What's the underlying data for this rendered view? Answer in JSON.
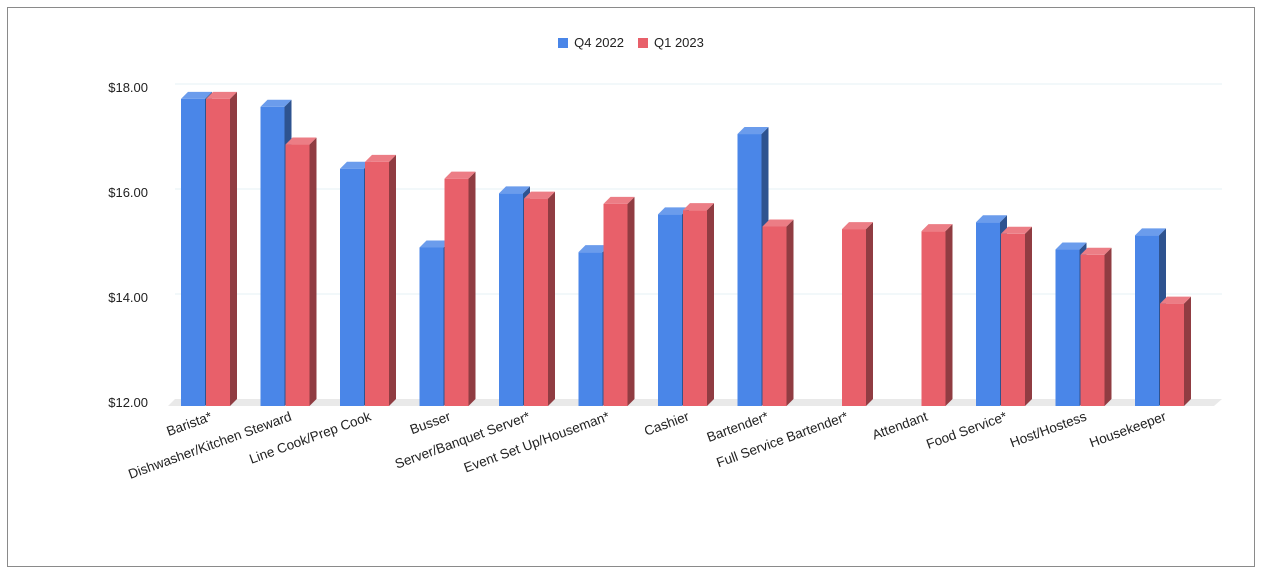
{
  "chart_data": {
    "type": "bar",
    "categories": [
      "Barista*",
      "Dishwasher/Kitchen Steward",
      "Line Cook/Prep Cook",
      "Busser",
      "Server/Banquet Server*",
      "Event Set Up/Houseman*",
      "Cashier",
      "Bartender*",
      "Full Service Bartender*",
      "Attendant",
      "Food Service*",
      "Host/Hostess",
      "Housekeeper"
    ],
    "series": [
      {
        "name": "Q4 2022",
        "color": "#4a86e8",
        "values": [
          17.85,
          17.7,
          16.52,
          15.02,
          16.05,
          14.93,
          15.65,
          17.18,
          null,
          null,
          15.5,
          14.98,
          15.25
        ]
      },
      {
        "name": "Q1 2023",
        "color": "#e8606a",
        "values": [
          17.85,
          16.98,
          16.65,
          16.33,
          15.95,
          15.85,
          15.73,
          15.42,
          15.37,
          15.33,
          15.28,
          14.88,
          13.95
        ]
      }
    ],
    "y_ticks": [
      "$12.00",
      "$14.00",
      "$16.00",
      "$18.00"
    ],
    "ylim": [
      12,
      18.6
    ],
    "title": "",
    "xlabel": "",
    "ylabel": "",
    "legend_position": "top-center",
    "grid": true,
    "style": "3d-column"
  }
}
